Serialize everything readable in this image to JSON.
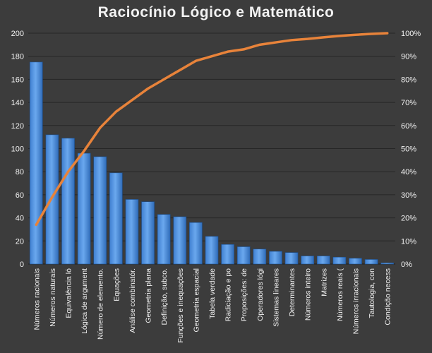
{
  "chart_data": {
    "type": "bar",
    "title": "Raciocínio  Lógico  e  Matemático",
    "xlabel": "",
    "ylabel": "",
    "ylim": [
      0,
      200
    ],
    "y2lim": [
      0,
      100
    ],
    "y_ticks": [
      "0",
      "20",
      "40",
      "60",
      "80",
      "100",
      "120",
      "140",
      "160",
      "180",
      "200"
    ],
    "y2_ticks": [
      "0%",
      "10%",
      "20%",
      "30%",
      "40%",
      "50%",
      "60%",
      "70%",
      "80%",
      "90%",
      "100%"
    ],
    "grid": true,
    "categories": [
      "Números racionais",
      "Números naturais",
      "Equivalência ló",
      "Lógica de argument",
      "Número de elemento.",
      "Equações",
      "Análise combinatór.",
      "Geometria plana",
      "Definição, subco.",
      "Funções e inequações",
      "Geometria espacial",
      "Tabela verdade",
      "Radiciação e po",
      "Proposições: de",
      "Operadores lógi",
      "Sistemas lineares",
      "Determinantes",
      "Números inteiro",
      "Matrizes",
      "Números reais (",
      "Números irracionais",
      "Tautologia, con",
      "Condição necess"
    ],
    "series": [
      {
        "type": "bar",
        "axis": "left",
        "color": "#4f8fdb",
        "values": [
          175,
          112,
          109,
          96,
          93,
          79,
          56,
          54,
          43,
          41,
          36,
          24,
          17,
          15,
          13,
          11,
          10,
          7,
          7,
          6,
          5,
          4,
          1
        ]
      },
      {
        "type": "line",
        "axis": "right",
        "color": "#e8833a",
        "values": [
          17,
          29,
          40,
          49,
          59,
          66,
          71,
          76,
          80,
          84,
          88,
          90,
          92,
          93,
          95,
          96,
          97,
          97.5,
          98.2,
          98.8,
          99.3,
          99.7,
          100
        ]
      }
    ]
  }
}
